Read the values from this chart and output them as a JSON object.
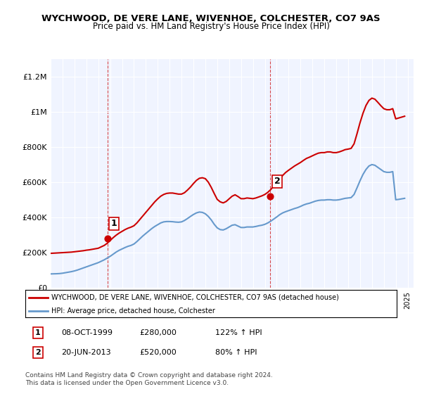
{
  "title": "WYCHWOOD, DE VERE LANE, WIVENHOE, COLCHESTER, CO7 9AS",
  "subtitle": "Price paid vs. HM Land Registry's House Price Index (HPI)",
  "ylabel": "",
  "xlim_start": 1995,
  "xlim_end": 2025.5,
  "ylim_min": 0,
  "ylim_max": 1300000,
  "yticks": [
    0,
    200000,
    400000,
    600000,
    800000,
    1000000,
    1200000
  ],
  "ytick_labels": [
    "£0",
    "£200K",
    "£400K",
    "£600K",
    "£800K",
    "£1M",
    "£1.2M"
  ],
  "xticks": [
    1995,
    1996,
    1997,
    1998,
    1999,
    2000,
    2001,
    2002,
    2003,
    2004,
    2005,
    2006,
    2007,
    2008,
    2009,
    2010,
    2011,
    2012,
    2013,
    2014,
    2015,
    2016,
    2017,
    2018,
    2019,
    2020,
    2021,
    2022,
    2023,
    2024,
    2025
  ],
  "house_color": "#cc0000",
  "hpi_color": "#6699cc",
  "sale1_x": 1999.77,
  "sale1_y": 280000,
  "sale1_label": "1",
  "sale2_x": 2013.47,
  "sale2_y": 520000,
  "sale2_label": "2",
  "legend_house": "WYCHWOOD, DE VERE LANE, WIVENHOE, COLCHESTER, CO7 9AS (detached house)",
  "legend_hpi": "HPI: Average price, detached house, Colchester",
  "note1_num": "1",
  "note1_date": "08-OCT-1999",
  "note1_price": "£280,000",
  "note1_hpi": "122% ↑ HPI",
  "note2_num": "2",
  "note2_date": "20-JUN-2013",
  "note2_price": "£520,000",
  "note2_hpi": "80% ↑ HPI",
  "footer": "Contains HM Land Registry data © Crown copyright and database right 2024.\nThis data is licensed under the Open Government Licence v3.0.",
  "bg_color": "#ffffff",
  "plot_bg_color": "#f0f4ff",
  "hpi_data_x": [
    1995.0,
    1995.25,
    1995.5,
    1995.75,
    1996.0,
    1996.25,
    1996.5,
    1996.75,
    1997.0,
    1997.25,
    1997.5,
    1997.75,
    1998.0,
    1998.25,
    1998.5,
    1998.75,
    1999.0,
    1999.25,
    1999.5,
    1999.75,
    2000.0,
    2000.25,
    2000.5,
    2000.75,
    2001.0,
    2001.25,
    2001.5,
    2001.75,
    2002.0,
    2002.25,
    2002.5,
    2002.75,
    2003.0,
    2003.25,
    2003.5,
    2003.75,
    2004.0,
    2004.25,
    2004.5,
    2004.75,
    2005.0,
    2005.25,
    2005.5,
    2005.75,
    2006.0,
    2006.25,
    2006.5,
    2006.75,
    2007.0,
    2007.25,
    2007.5,
    2007.75,
    2008.0,
    2008.25,
    2008.5,
    2008.75,
    2009.0,
    2009.25,
    2009.5,
    2009.75,
    2010.0,
    2010.25,
    2010.5,
    2010.75,
    2011.0,
    2011.25,
    2011.5,
    2011.75,
    2012.0,
    2012.25,
    2012.5,
    2012.75,
    2013.0,
    2013.25,
    2013.5,
    2013.75,
    2014.0,
    2014.25,
    2014.5,
    2014.75,
    2015.0,
    2015.25,
    2015.5,
    2015.75,
    2016.0,
    2016.25,
    2016.5,
    2016.75,
    2017.0,
    2017.25,
    2017.5,
    2017.75,
    2018.0,
    2018.25,
    2018.5,
    2018.75,
    2019.0,
    2019.25,
    2019.5,
    2019.75,
    2020.0,
    2020.25,
    2020.5,
    2020.75,
    2021.0,
    2021.25,
    2021.5,
    2021.75,
    2022.0,
    2022.25,
    2022.5,
    2022.75,
    2023.0,
    2023.25,
    2023.5,
    2023.75,
    2024.0,
    2024.25,
    2024.5,
    2024.75
  ],
  "hpi_data_y": [
    78000,
    78500,
    79000,
    80000,
    82000,
    85000,
    88000,
    91000,
    95000,
    100000,
    106000,
    112000,
    118000,
    124000,
    130000,
    136000,
    142000,
    150000,
    158000,
    168000,
    178000,
    190000,
    202000,
    212000,
    220000,
    228000,
    235000,
    240000,
    248000,
    262000,
    278000,
    294000,
    308000,
    322000,
    336000,
    348000,
    358000,
    368000,
    374000,
    376000,
    376000,
    375000,
    373000,
    372000,
    374000,
    382000,
    393000,
    405000,
    416000,
    425000,
    430000,
    428000,
    420000,
    405000,
    385000,
    360000,
    340000,
    330000,
    328000,
    335000,
    345000,
    355000,
    358000,
    350000,
    342000,
    342000,
    345000,
    345000,
    345000,
    348000,
    352000,
    355000,
    360000,
    368000,
    378000,
    390000,
    402000,
    415000,
    425000,
    432000,
    438000,
    444000,
    450000,
    455000,
    462000,
    470000,
    476000,
    480000,
    486000,
    492000,
    496000,
    498000,
    498000,
    500000,
    500000,
    498000,
    498000,
    500000,
    504000,
    508000,
    510000,
    512000,
    530000,
    568000,
    608000,
    644000,
    672000,
    692000,
    700000,
    696000,
    684000,
    672000,
    660000,
    656000,
    656000,
    660000,
    500000,
    502000,
    505000,
    508000
  ],
  "house_data_x": [
    1995.0,
    1995.25,
    1995.5,
    1995.75,
    1996.0,
    1996.25,
    1996.5,
    1996.75,
    1997.0,
    1997.25,
    1997.5,
    1997.75,
    1998.0,
    1998.25,
    1998.5,
    1998.75,
    1999.0,
    1999.25,
    1999.5,
    1999.75,
    2000.0,
    2000.25,
    2000.5,
    2000.75,
    2001.0,
    2001.25,
    2001.5,
    2001.75,
    2002.0,
    2002.25,
    2002.5,
    2002.75,
    2003.0,
    2003.25,
    2003.5,
    2003.75,
    2004.0,
    2004.25,
    2004.5,
    2004.75,
    2005.0,
    2005.25,
    2005.5,
    2005.75,
    2006.0,
    2006.25,
    2006.5,
    2006.75,
    2007.0,
    2007.25,
    2007.5,
    2007.75,
    2008.0,
    2008.25,
    2008.5,
    2008.75,
    2009.0,
    2009.25,
    2009.5,
    2009.75,
    2010.0,
    2010.25,
    2010.5,
    2010.75,
    2011.0,
    2011.25,
    2011.5,
    2011.75,
    2012.0,
    2012.25,
    2012.5,
    2012.75,
    2013.0,
    2013.25,
    2013.5,
    2013.75,
    2014.0,
    2014.25,
    2014.5,
    2014.75,
    2015.0,
    2015.25,
    2015.5,
    2015.75,
    2016.0,
    2016.25,
    2016.5,
    2016.75,
    2017.0,
    2017.25,
    2017.5,
    2017.75,
    2018.0,
    2018.25,
    2018.5,
    2018.75,
    2019.0,
    2019.25,
    2019.5,
    2019.75,
    2020.0,
    2020.25,
    2020.5,
    2020.75,
    2021.0,
    2021.25,
    2021.5,
    2021.75,
    2022.0,
    2022.25,
    2022.5,
    2022.75,
    2023.0,
    2023.25,
    2023.5,
    2023.75,
    2024.0,
    2024.25,
    2024.5,
    2024.75
  ],
  "house_data_y": [
    195000,
    196000,
    197000,
    198000,
    199000,
    200000,
    201000,
    202000,
    204000,
    206000,
    208000,
    210000,
    213000,
    215000,
    218000,
    221000,
    224000,
    232000,
    240000,
    252000,
    268000,
    284000,
    298000,
    310000,
    320000,
    330000,
    338000,
    344000,
    352000,
    368000,
    388000,
    408000,
    428000,
    448000,
    468000,
    488000,
    505000,
    520000,
    530000,
    536000,
    538000,
    538000,
    535000,
    532000,
    532000,
    540000,
    555000,
    572000,
    592000,
    610000,
    622000,
    625000,
    620000,
    600000,
    570000,
    535000,
    502000,
    488000,
    482000,
    490000,
    505000,
    520000,
    528000,
    518000,
    506000,
    506000,
    510000,
    508000,
    506000,
    510000,
    516000,
    522000,
    530000,
    542000,
    558000,
    578000,
    598000,
    618000,
    638000,
    655000,
    668000,
    680000,
    692000,
    702000,
    712000,
    724000,
    735000,
    742000,
    750000,
    758000,
    765000,
    768000,
    768000,
    772000,
    772000,
    768000,
    768000,
    772000,
    778000,
    785000,
    788000,
    792000,
    818000,
    876000,
    938000,
    992000,
    1036000,
    1065000,
    1078000,
    1072000,
    1054000,
    1035000,
    1018000,
    1012000,
    1012000,
    1018000,
    960000,
    965000,
    970000,
    975000
  ]
}
